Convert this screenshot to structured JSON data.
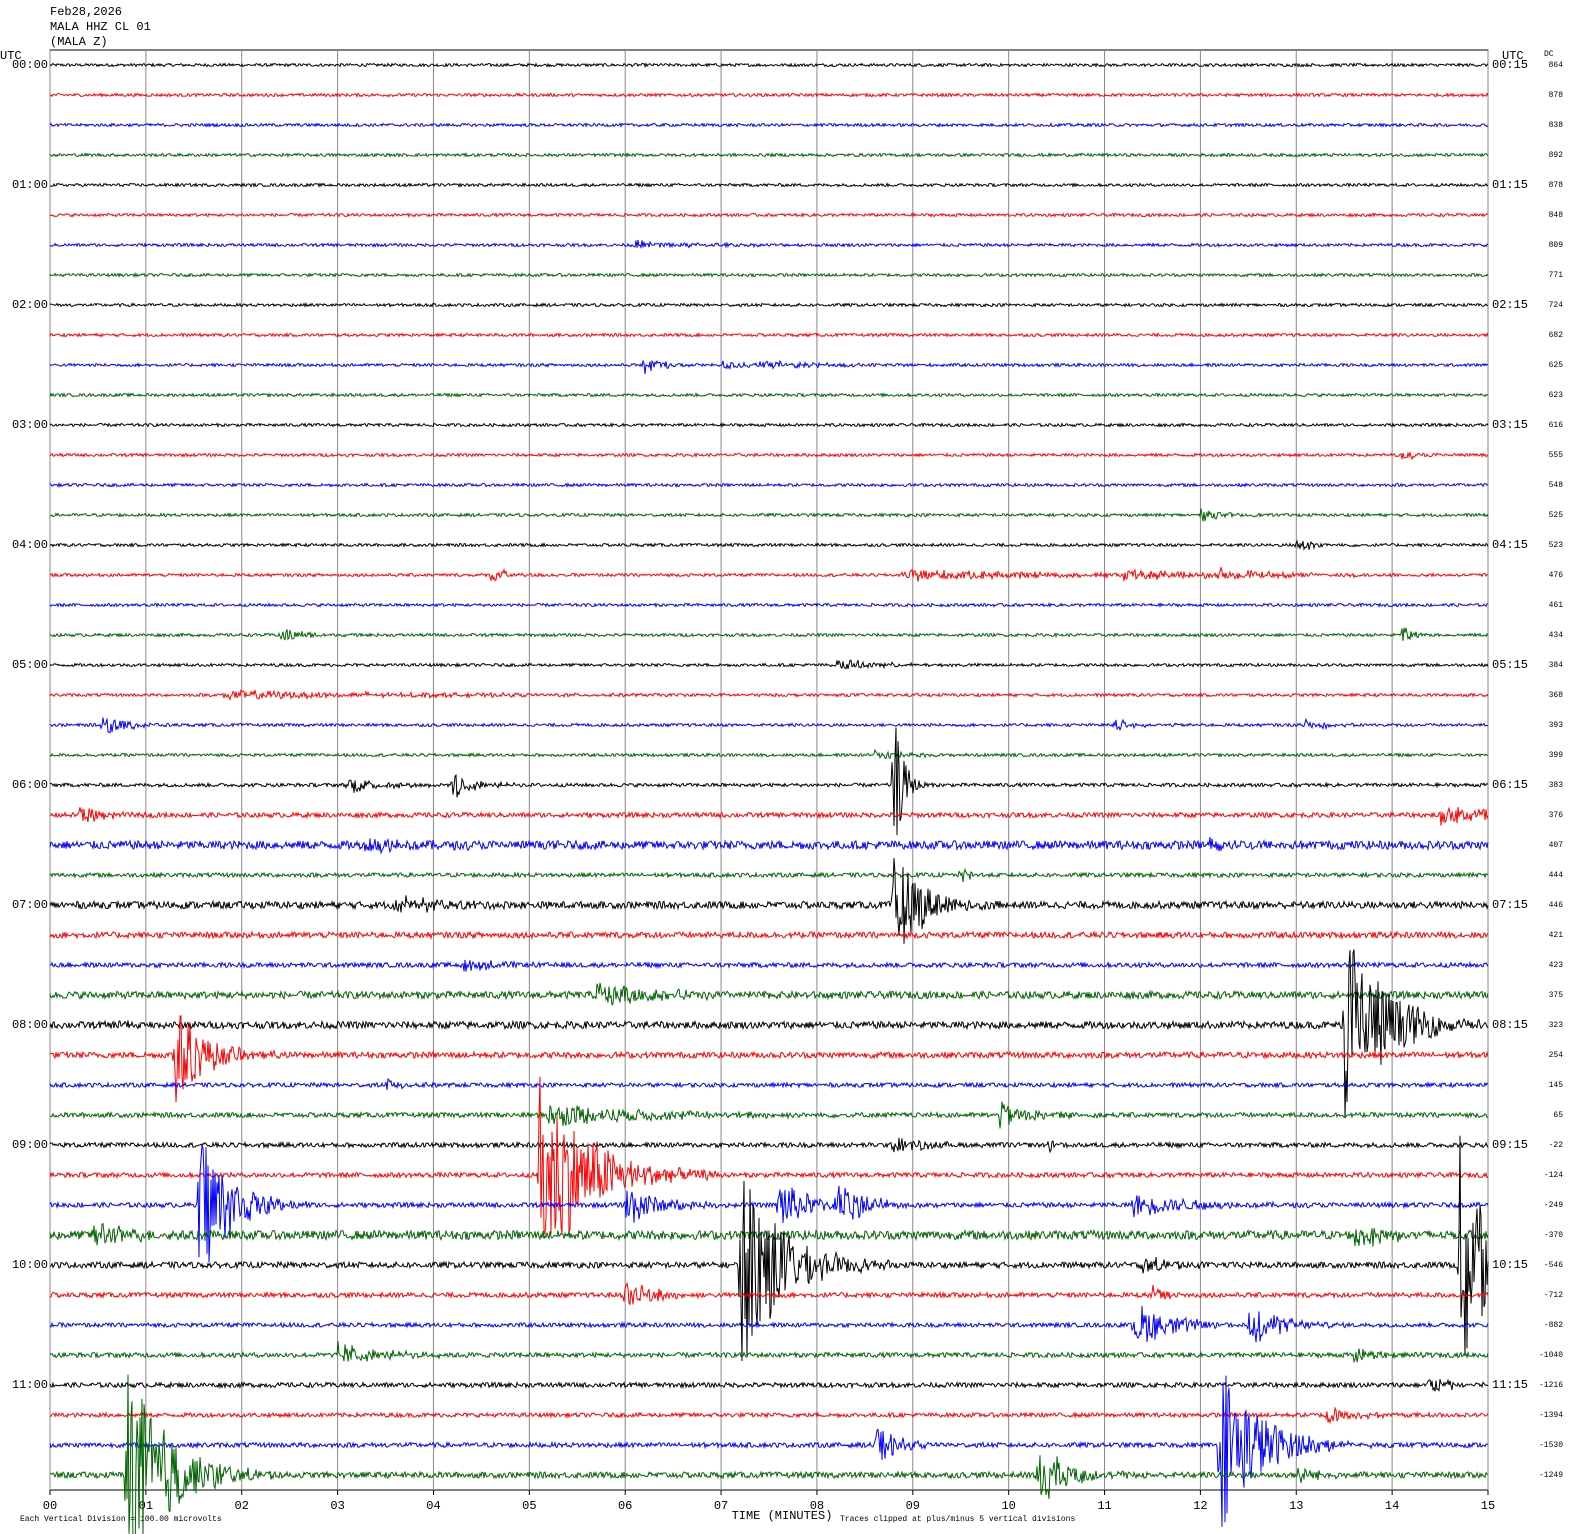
{
  "header": {
    "date": "Feb28,2026",
    "station": "MALA HHZ CL 01",
    "component": "(MALA Z)"
  },
  "chart_data": {
    "type": "helicorder",
    "left_axis_title": "UTC",
    "right_axis_title": "UTC",
    "dc_title": "DC",
    "x_label": "TIME (MINUTES)",
    "footnote_left": "Each Vertical Division =  100.00 microvolts",
    "footnote_right": "Traces clipped at plus/minus 5 vertical divisions",
    "xlim": [
      0,
      15
    ],
    "xticks": [
      {
        "value": 0,
        "label": "00"
      },
      {
        "value": 1,
        "label": "01"
      },
      {
        "value": 2,
        "label": "02"
      },
      {
        "value": 3,
        "label": "03"
      },
      {
        "value": 4,
        "label": "04"
      },
      {
        "value": 5,
        "label": "05"
      },
      {
        "value": 6,
        "label": "06"
      },
      {
        "value": 7,
        "label": "07"
      },
      {
        "value": 8,
        "label": "08"
      },
      {
        "value": 9,
        "label": "09"
      },
      {
        "value": 10,
        "label": "10"
      },
      {
        "value": 11,
        "label": "11"
      },
      {
        "value": 12,
        "label": "12"
      },
      {
        "value": 13,
        "label": "13"
      },
      {
        "value": 14,
        "label": "14"
      },
      {
        "value": 15,
        "label": "15"
      }
    ],
    "grid": true,
    "left_labels": [
      "00:00",
      "01:00",
      "02:00",
      "03:00",
      "04:00",
      "05:00",
      "06:00",
      "07:00",
      "08:00",
      "09:00",
      "10:00",
      "11:00"
    ],
    "right_labels": [
      "00:15",
      "01:15",
      "02:15",
      "03:15",
      "04:15",
      "05:15",
      "06:15",
      "07:15",
      "08:15",
      "09:15",
      "10:15",
      "11:15"
    ],
    "trace_colors": [
      "#000000",
      "#ff0000",
      "#0000ff",
      "#006400"
    ],
    "traces": [
      {
        "dc": 864,
        "noise": 0.05,
        "events": []
      },
      {
        "dc": 878,
        "noise": 0.05,
        "events": []
      },
      {
        "dc": 838,
        "noise": 0.05,
        "events": []
      },
      {
        "dc": 892,
        "noise": 0.05,
        "events": []
      },
      {
        "dc": 878,
        "noise": 0.05,
        "events": []
      },
      {
        "dc": 848,
        "noise": 0.05,
        "events": []
      },
      {
        "dc": 809,
        "noise": 0.05,
        "events": [
          [
            6.1,
            0.15,
            0.5
          ]
        ]
      },
      {
        "dc": 771,
        "noise": 0.05,
        "events": []
      },
      {
        "dc": 724,
        "noise": 0.05,
        "events": []
      },
      {
        "dc": 682,
        "noise": 0.05,
        "events": []
      },
      {
        "dc": 625,
        "noise": 0.05,
        "events": [
          [
            6.2,
            0.3,
            0.2
          ],
          [
            7.0,
            0.15,
            0.3
          ],
          [
            7.4,
            0.15,
            0.5
          ]
        ]
      },
      {
        "dc": 623,
        "noise": 0.05,
        "events": []
      },
      {
        "dc": 616,
        "noise": 0.05,
        "events": []
      },
      {
        "dc": 555,
        "noise": 0.05,
        "events": [
          [
            14.1,
            0.15,
            0.2
          ]
        ]
      },
      {
        "dc": 548,
        "noise": 0.05,
        "events": []
      },
      {
        "dc": 525,
        "noise": 0.05,
        "events": [
          [
            12.0,
            0.2,
            0.2
          ]
        ]
      },
      {
        "dc": 523,
        "noise": 0.05,
        "events": [
          [
            13.0,
            0.25,
            0.2
          ]
        ]
      },
      {
        "dc": 476,
        "noise": 0.05,
        "events": [
          [
            4.6,
            0.3,
            0.2
          ],
          [
            8.9,
            0.2,
            1.5
          ],
          [
            11.2,
            0.2,
            0.8
          ],
          [
            12.2,
            0.2,
            0.5
          ]
        ]
      },
      {
        "dc": 461,
        "noise": 0.05,
        "events": []
      },
      {
        "dc": 434,
        "noise": 0.05,
        "events": [
          [
            2.4,
            0.3,
            0.2
          ],
          [
            14.1,
            0.4,
            0.1
          ]
        ]
      },
      {
        "dc": 384,
        "noise": 0.05,
        "events": [
          [
            8.2,
            0.2,
            0.4
          ]
        ]
      },
      {
        "dc": 368,
        "noise": 0.05,
        "events": [
          [
            1.8,
            0.15,
            1.8
          ]
        ]
      },
      {
        "dc": 393,
        "noise": 0.05,
        "events": [
          [
            0.55,
            0.5,
            0.2
          ],
          [
            11.1,
            0.2,
            0.2
          ],
          [
            13.1,
            0.2,
            0.2
          ]
        ]
      },
      {
        "dc": 399,
        "noise": 0.05,
        "events": [
          [
            8.6,
            0.2,
            0.3
          ]
        ]
      },
      {
        "dc": 383,
        "noise": 0.06,
        "events": [
          [
            3.1,
            0.3,
            0.3
          ],
          [
            4.2,
            0.5,
            0.2
          ],
          [
            8.8,
            2.5,
            0.1
          ]
        ]
      },
      {
        "dc": 376,
        "noise": 0.08,
        "events": [
          [
            0.3,
            0.4,
            0.2
          ],
          [
            14.5,
            0.3,
            1.0
          ]
        ]
      },
      {
        "dc": 407,
        "noise": 0.14,
        "events": [
          [
            3.3,
            0.3,
            0.5
          ],
          [
            12.1,
            0.3,
            0.3
          ]
        ]
      },
      {
        "dc": 444,
        "noise": 0.07,
        "events": [
          [
            9.5,
            0.3,
            0.1
          ]
        ]
      },
      {
        "dc": 446,
        "noise": 0.12,
        "events": [
          [
            3.6,
            0.3,
            0.5
          ],
          [
            8.8,
            2.0,
            0.3
          ]
        ]
      },
      {
        "dc": 421,
        "noise": 0.1,
        "events": []
      },
      {
        "dc": 423,
        "noise": 0.08,
        "events": [
          [
            4.3,
            0.3,
            0.3
          ]
        ]
      },
      {
        "dc": 375,
        "noise": 0.12,
        "events": [
          [
            5.7,
            0.4,
            0.6
          ]
        ]
      },
      {
        "dc": 323,
        "noise": 0.12,
        "events": [
          [
            0.7,
            0.3,
            0.2
          ],
          [
            13.5,
            3.7,
            0.4
          ]
        ]
      },
      {
        "dc": 254,
        "noise": 0.1,
        "events": [
          [
            1.3,
            1.8,
            0.3
          ]
        ]
      },
      {
        "dc": 145,
        "noise": 0.07,
        "events": [
          [
            3.5,
            0.2,
            0.2
          ]
        ]
      },
      {
        "dc": 65,
        "noise": 0.08,
        "events": [
          [
            5.2,
            0.4,
            1.0
          ],
          [
            9.9,
            0.5,
            0.3
          ]
        ]
      },
      {
        "dc": -22,
        "noise": 0.08,
        "events": [
          [
            8.8,
            0.3,
            0.3
          ],
          [
            10.4,
            0.3,
            0.1
          ]
        ]
      },
      {
        "dc": -124,
        "noise": 0.08,
        "events": [
          [
            5.1,
            3.5,
            0.5
          ]
        ]
      },
      {
        "dc": -249,
        "noise": 0.08,
        "events": [
          [
            1.55,
            3.0,
            0.3
          ],
          [
            6.0,
            0.8,
            0.3
          ],
          [
            7.6,
            1.0,
            0.3
          ],
          [
            8.2,
            0.8,
            0.3
          ],
          [
            11.3,
            0.4,
            0.6
          ]
        ]
      },
      {
        "dc": -370,
        "noise": 0.15,
        "events": [
          [
            0.45,
            0.5,
            0.3
          ],
          [
            13.6,
            0.5,
            0.3
          ]
        ]
      },
      {
        "dc": -546,
        "noise": 0.1,
        "events": [
          [
            7.2,
            4.0,
            0.4
          ],
          [
            11.4,
            0.3,
            0.3
          ],
          [
            14.7,
            4.5,
            0.4
          ]
        ]
      },
      {
        "dc": -712,
        "noise": 0.08,
        "events": [
          [
            6.0,
            1.0,
            0.2
          ],
          [
            11.5,
            0.4,
            0.1
          ]
        ]
      },
      {
        "dc": -882,
        "noise": 0.07,
        "events": [
          [
            11.3,
            0.8,
            0.4
          ],
          [
            12.5,
            0.8,
            0.3
          ]
        ]
      },
      {
        "dc": -1040,
        "noise": 0.08,
        "events": [
          [
            3.0,
            0.4,
            0.4
          ],
          [
            13.6,
            0.3,
            0.2
          ]
        ]
      },
      {
        "dc": -1216,
        "noise": 0.08,
        "events": [
          [
            14.3,
            0.3,
            0.3
          ]
        ]
      },
      {
        "dc": -1394,
        "noise": 0.07,
        "events": [
          [
            13.3,
            0.3,
            0.3
          ]
        ]
      },
      {
        "dc": -1530,
        "noise": 0.08,
        "events": [
          [
            8.6,
            0.8,
            0.2
          ],
          [
            12.2,
            3.0,
            0.4
          ]
        ]
      },
      {
        "dc": -1249,
        "noise": 0.1,
        "events": [
          [
            0.8,
            4.0,
            0.4
          ],
          [
            10.3,
            1.1,
            0.3
          ],
          [
            13.0,
            0.3,
            0.2
          ]
        ]
      }
    ]
  }
}
